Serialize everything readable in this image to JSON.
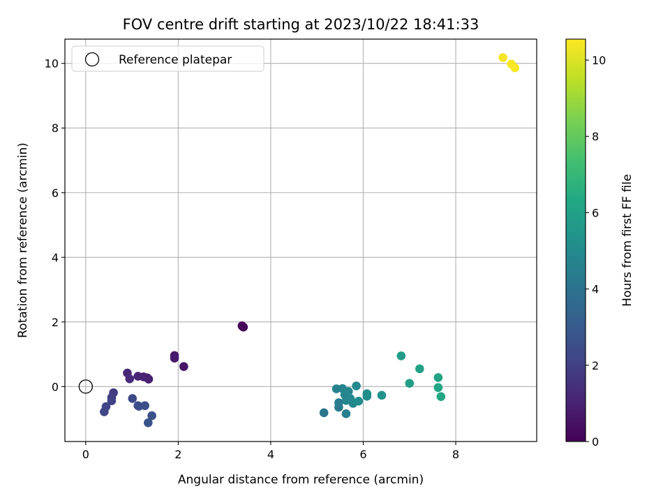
{
  "chart_data": {
    "type": "scatter",
    "title": "FOV centre drift starting at 2023/10/22 18:41:33",
    "xlabel": "Angular distance from reference (arcmin)",
    "ylabel": "Rotation from reference (arcmin)",
    "xlim": [
      -0.45,
      9.75
    ],
    "ylim": [
      -1.7,
      10.75
    ],
    "xticks": [
      0,
      2,
      4,
      6,
      8
    ],
    "yticks": [
      0,
      2,
      4,
      6,
      8,
      10
    ],
    "grid": true,
    "legend": {
      "position": "top-left",
      "entries": [
        "Reference platepar"
      ]
    },
    "reference_point": {
      "x": 0,
      "y": 0
    },
    "colorbar": {
      "label": "Hours from first FF file",
      "colormap": "viridis",
      "range": [
        0,
        10.55
      ],
      "ticks": [
        0,
        2,
        4,
        6,
        8,
        10
      ]
    },
    "points": [
      {
        "x": 3.38,
        "y": 1.88,
        "c": 0.1
      },
      {
        "x": 3.41,
        "y": 1.84,
        "c": 0.15
      },
      {
        "x": 3.39,
        "y": 1.86,
        "c": 0.2
      },
      {
        "x": 2.12,
        "y": 0.62,
        "c": 0.6
      },
      {
        "x": 1.92,
        "y": 0.96,
        "c": 0.7
      },
      {
        "x": 1.92,
        "y": 0.88,
        "c": 0.75
      },
      {
        "x": 1.36,
        "y": 0.23,
        "c": 0.9
      },
      {
        "x": 1.33,
        "y": 0.27,
        "c": 0.95
      },
      {
        "x": 1.25,
        "y": 0.3,
        "c": 1.0
      },
      {
        "x": 1.13,
        "y": 0.32,
        "c": 1.05
      },
      {
        "x": 0.9,
        "y": 0.42,
        "c": 1.15
      },
      {
        "x": 0.95,
        "y": 0.24,
        "c": 1.25
      },
      {
        "x": 0.6,
        "y": -0.19,
        "c": 1.8
      },
      {
        "x": 0.56,
        "y": -0.34,
        "c": 1.9
      },
      {
        "x": 0.56,
        "y": -0.44,
        "c": 2.0
      },
      {
        "x": 0.44,
        "y": -0.62,
        "c": 2.1
      },
      {
        "x": 0.4,
        "y": -0.78,
        "c": 2.2
      },
      {
        "x": 1.01,
        "y": -0.37,
        "c": 2.3
      },
      {
        "x": 1.13,
        "y": -0.59,
        "c": 2.4
      },
      {
        "x": 1.15,
        "y": -0.61,
        "c": 2.45
      },
      {
        "x": 1.28,
        "y": -0.59,
        "c": 2.5
      },
      {
        "x": 1.43,
        "y": -0.9,
        "c": 2.6
      },
      {
        "x": 1.35,
        "y": -1.12,
        "c": 2.7
      },
      {
        "x": 5.15,
        "y": -0.81,
        "c": 4.1
      },
      {
        "x": 5.47,
        "y": -0.64,
        "c": 4.3
      },
      {
        "x": 5.47,
        "y": -0.5,
        "c": 4.4
      },
      {
        "x": 5.63,
        "y": -0.84,
        "c": 4.5
      },
      {
        "x": 5.42,
        "y": -0.07,
        "c": 4.6
      },
      {
        "x": 5.55,
        "y": -0.06,
        "c": 4.7
      },
      {
        "x": 5.6,
        "y": -0.25,
        "c": 4.75
      },
      {
        "x": 5.63,
        "y": -0.43,
        "c": 4.8
      },
      {
        "x": 5.68,
        "y": -0.15,
        "c": 4.85
      },
      {
        "x": 5.72,
        "y": -0.37,
        "c": 4.9
      },
      {
        "x": 5.78,
        "y": -0.52,
        "c": 4.95
      },
      {
        "x": 5.85,
        "y": 0.02,
        "c": 5.0
      },
      {
        "x": 5.9,
        "y": -0.45,
        "c": 5.05
      },
      {
        "x": 6.08,
        "y": -0.3,
        "c": 5.1
      },
      {
        "x": 6.08,
        "y": -0.22,
        "c": 5.15
      },
      {
        "x": 6.4,
        "y": -0.27,
        "c": 5.3
      },
      {
        "x": 6.82,
        "y": 0.95,
        "c": 5.8
      },
      {
        "x": 7.0,
        "y": 0.1,
        "c": 5.9
      },
      {
        "x": 7.22,
        "y": 0.55,
        "c": 6.0
      },
      {
        "x": 7.62,
        "y": 0.28,
        "c": 6.1
      },
      {
        "x": 7.62,
        "y": -0.03,
        "c": 6.2
      },
      {
        "x": 7.68,
        "y": -0.31,
        "c": 6.3
      },
      {
        "x": 9.02,
        "y": 10.18,
        "c": 10.4
      },
      {
        "x": 9.2,
        "y": 9.98,
        "c": 10.45
      },
      {
        "x": 9.28,
        "y": 9.86,
        "c": 10.5
      }
    ]
  }
}
